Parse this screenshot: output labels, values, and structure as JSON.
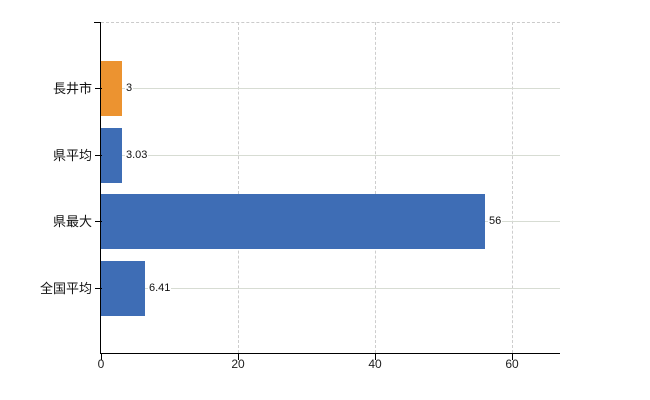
{
  "chart_data": {
    "type": "bar",
    "orientation": "horizontal",
    "title": "",
    "xlabel": "",
    "ylabel": "",
    "categories": [
      "長井市",
      "県平均",
      "県最大",
      "全国平均"
    ],
    "values": [
      3,
      3.03,
      56,
      6.41
    ],
    "value_labels": [
      "3",
      "3.03",
      "56",
      "6.41"
    ],
    "series": [
      {
        "name": "value",
        "values": [
          3,
          3.03,
          56,
          6.41
        ]
      }
    ],
    "bar_colors": [
      "#EC9330",
      "#3E6DB5",
      "#3E6DB5",
      "#3E6DB5"
    ],
    "highlighted_category": "長井市",
    "x_ticks": [
      "0",
      "20",
      "40",
      "60"
    ],
    "x_tick_values": [
      0,
      20,
      40,
      60
    ],
    "xlim": [
      0,
      67
    ],
    "grid": {
      "vertical_lines": "dashed",
      "category_row_lines": true,
      "legend": "none"
    }
  },
  "colors": {
    "bar_blue": "#3E6DB5",
    "bar_orange": "#EC9330",
    "axis": "#000000",
    "dashed_grid": "#cdcdcd",
    "row_line": "#d7dcd3",
    "text": "#111111",
    "background": "#ffffff"
  }
}
